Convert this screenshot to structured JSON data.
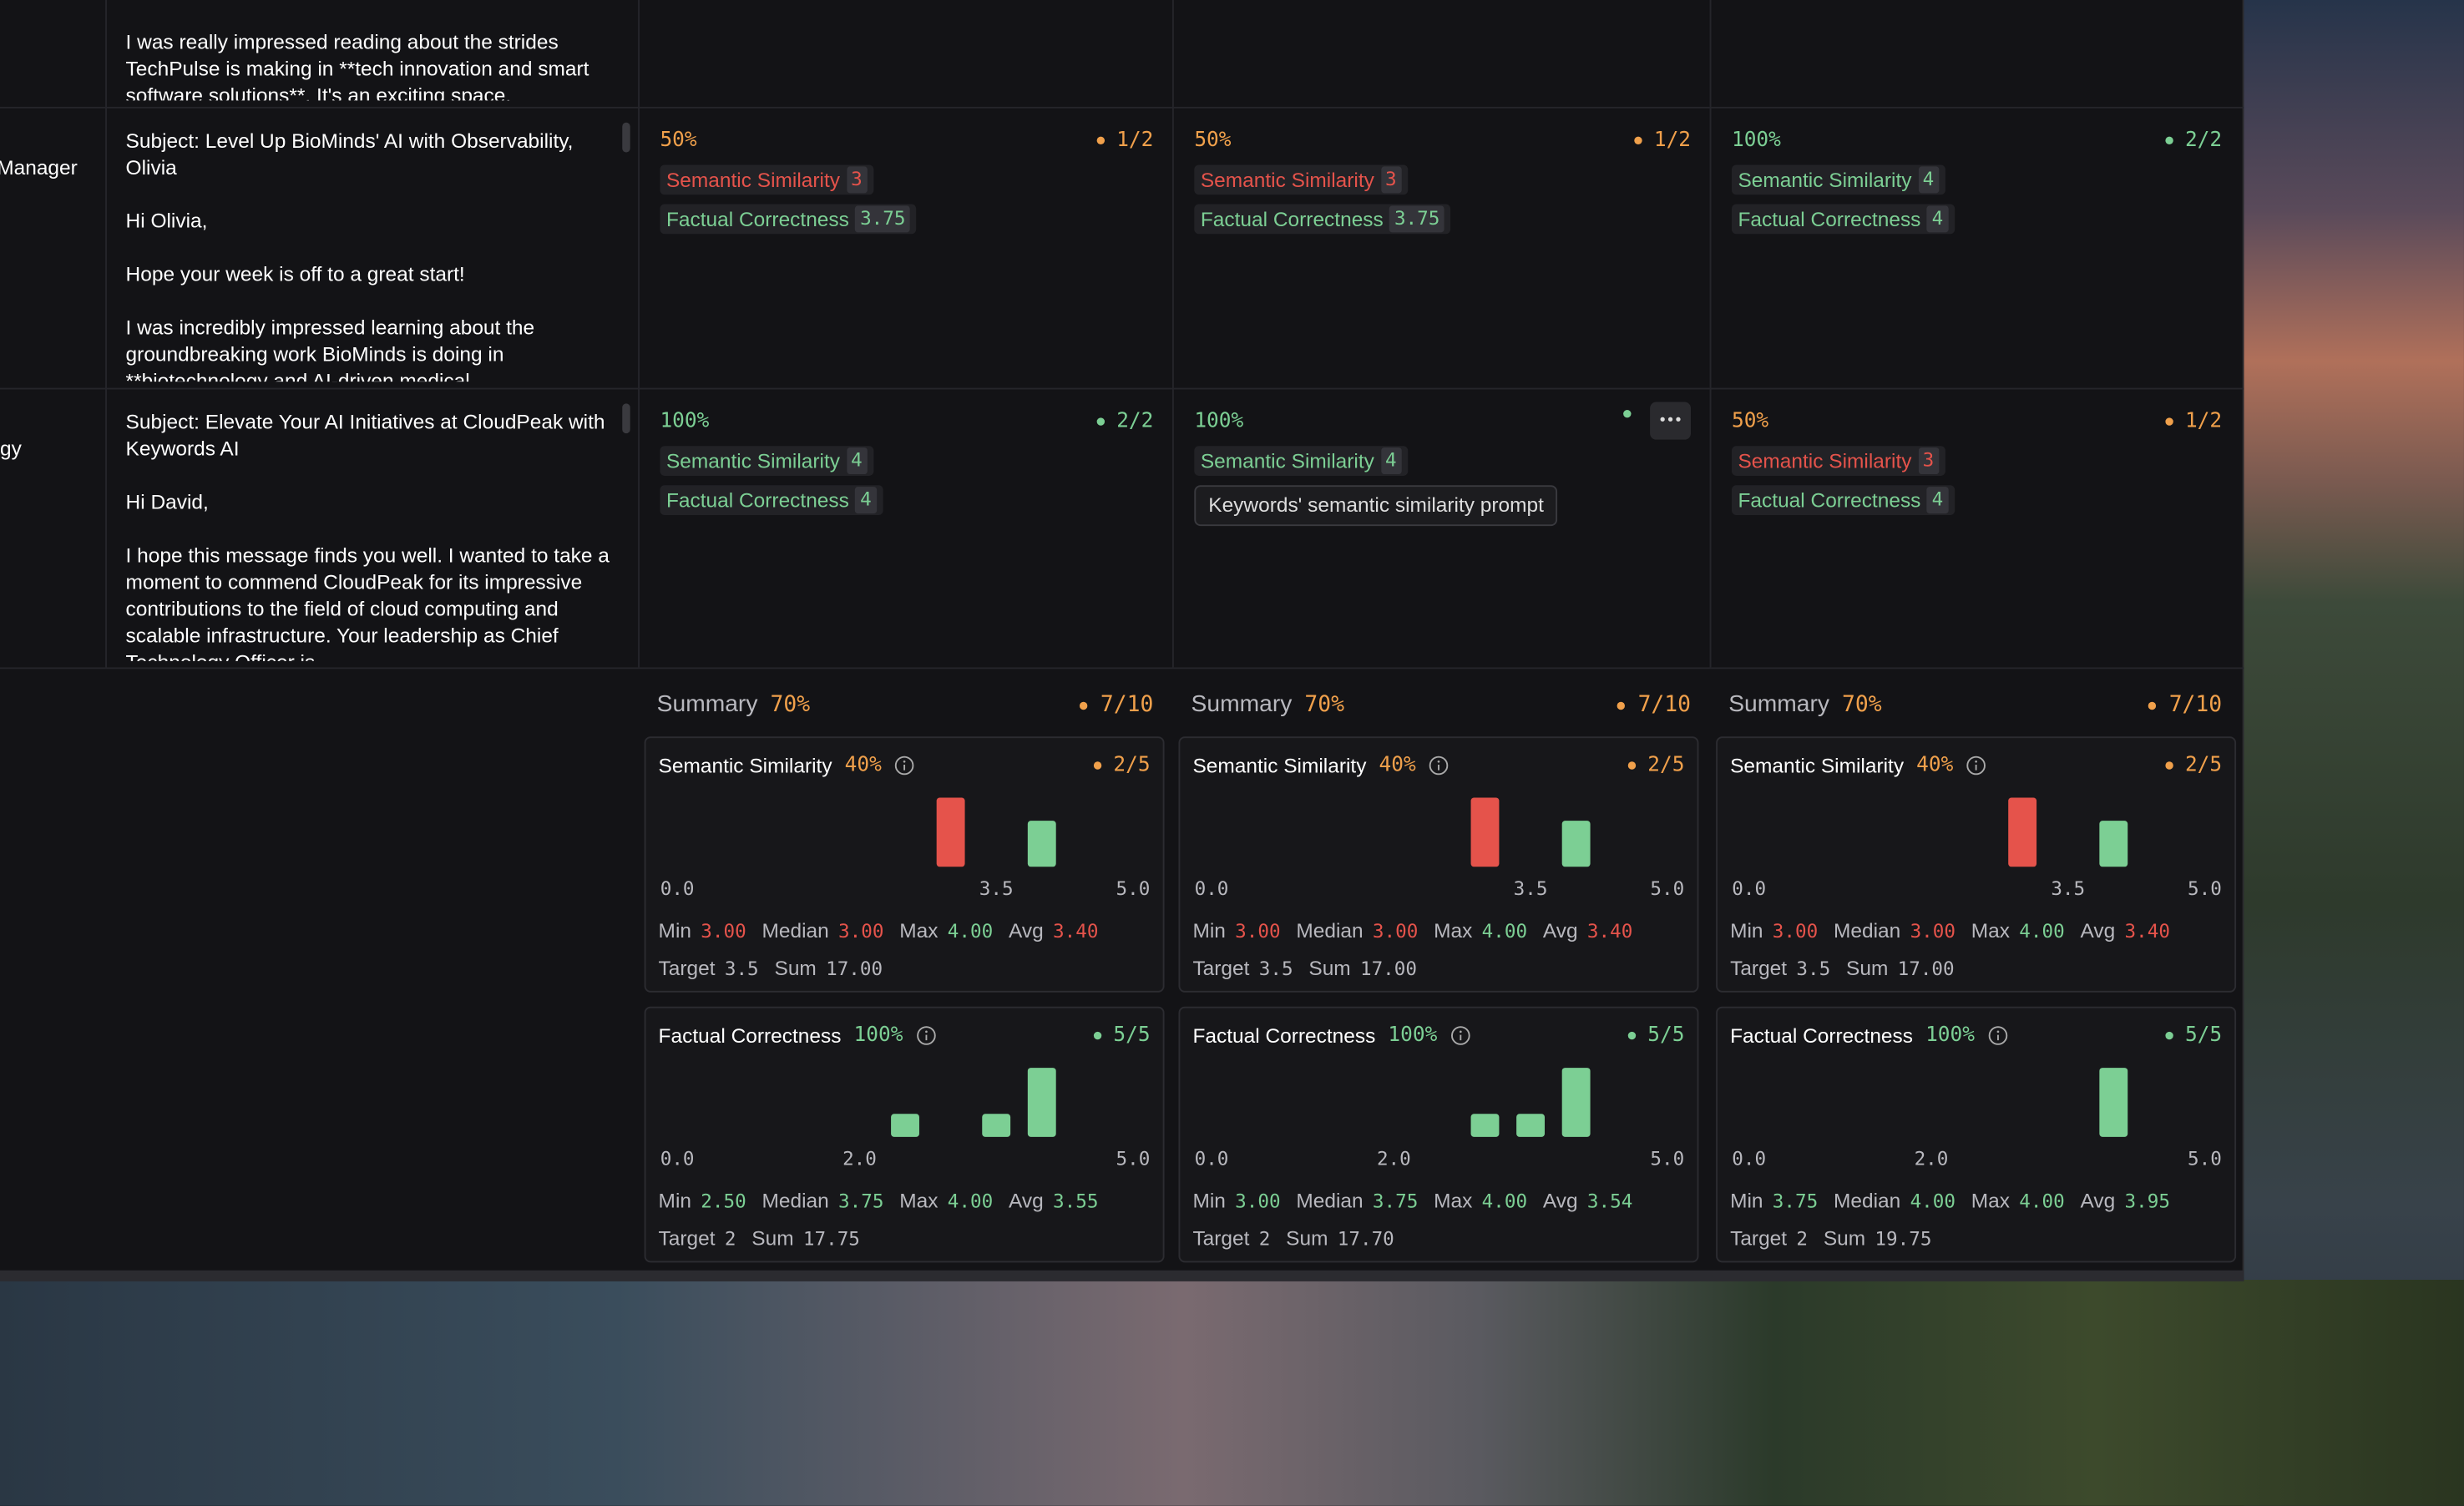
{
  "rows": [
    {
      "email": "I was really impressed reading about the strides TechPulse is making in **tech innovation and smart software solutions**. It's an exciting space."
    },
    {
      "label": "Manager",
      "email": "Subject: Level Up BioMinds' AI with Observability, Olivia\n\nHi Olivia,\n\nHope your week is off to a great start!\n\nI was incredibly impressed learning about the groundbreaking work BioMinds is doing in **biotechnology and AI-driven medical",
      "cells": [
        {
          "pct": "50%",
          "pct_color": "#f0a04b",
          "score": "1/2",
          "score_color": "#f0a04b",
          "metrics": [
            {
              "name": "Semantic Similarity",
              "value": 3,
              "color": "#e5534b"
            },
            {
              "name": "Factual Correctness",
              "value": 3.75,
              "color": "#7ccf94"
            }
          ]
        },
        {
          "pct": "50%",
          "pct_color": "#f0a04b",
          "score": "1/2",
          "score_color": "#f0a04b",
          "metrics": [
            {
              "name": "Semantic Similarity",
              "value": 3,
              "color": "#e5534b"
            },
            {
              "name": "Factual Correctness",
              "value": 3.75,
              "color": "#7ccf94"
            }
          ]
        },
        {
          "pct": "100%",
          "pct_color": "#7ccf94",
          "score": "2/2",
          "score_color": "#7ccf94",
          "metrics": [
            {
              "name": "Semantic Similarity",
              "value": 4,
              "color": "#7ccf94"
            },
            {
              "name": "Factual Correctness",
              "value": 4,
              "color": "#7ccf94"
            }
          ]
        }
      ]
    },
    {
      "label": "gy",
      "email": "Subject: Elevate Your AI Initiatives at CloudPeak with Keywords AI\n\nHi David,\n\nI hope this message finds you well. I wanted to take a moment to commend CloudPeak for its impressive contributions to the field of cloud computing and scalable infrastructure. Your leadership as Chief Technology Officer is",
      "cells": [
        {
          "pct": "100%",
          "pct_color": "#7ccf94",
          "score": "2/2",
          "score_color": "#7ccf94",
          "metrics": [
            {
              "name": "Semantic Similarity",
              "value": 4,
              "color": "#7ccf94"
            },
            {
              "name": "Factual Correctness",
              "value": 4,
              "color": "#7ccf94"
            }
          ]
        },
        {
          "pct": "100%",
          "pct_color": "#7ccf94",
          "score_color": "#7ccf94",
          "metrics": [
            {
              "name": "Semantic Similarity",
              "value": 4,
              "color": "#7ccf94"
            }
          ],
          "tooltip": "Keywords' semantic similarity prompt"
        },
        {
          "pct": "50%",
          "pct_color": "#f0a04b",
          "score": "1/2",
          "score_color": "#f0a04b",
          "metrics": [
            {
              "name": "Semantic Similarity",
              "value": 3,
              "color": "#e5534b"
            },
            {
              "name": "Factual Correctness",
              "value": 4,
              "color": "#7ccf94"
            }
          ]
        }
      ]
    }
  ],
  "summary": [
    {
      "label": "Summary",
      "pct": "70%",
      "score": "7/10",
      "color": "#f0a04b",
      "charts": [
        {
          "title": "Semantic Similarity",
          "pct": "40%",
          "color": "#f0a04b",
          "score": "2/5",
          "xlim": [
            0,
            5
          ],
          "xticks": [
            {
              "value": 0,
              "label": "0.0"
            },
            {
              "value": 3.5,
              "label": "3.5"
            },
            {
              "value": 5,
              "label": "5.0"
            }
          ],
          "bars": [
            {
              "x": 3,
              "count": 3,
              "color": "#e5534b"
            },
            {
              "x": 4,
              "count": 2,
              "color": "#7ccf94"
            }
          ],
          "stats": [
            {
              "label": "Min",
              "value": "3.00",
              "color": "#e5534b"
            },
            {
              "label": "Median",
              "value": "3.00",
              "color": "#e5534b"
            },
            {
              "label": "Max",
              "value": "4.00",
              "color": "#7ccf94"
            },
            {
              "label": "Avg",
              "value": "3.40",
              "color": "#e5534b"
            }
          ],
          "totals": [
            {
              "label": "Target",
              "value": "3.5"
            },
            {
              "label": "Sum",
              "value": "17.00"
            }
          ]
        },
        {
          "title": "Factual Correctness",
          "pct": "100%",
          "color": "#7ccf94",
          "score": "5/5",
          "xlim": [
            0,
            5
          ],
          "xticks": [
            {
              "value": 0,
              "label": "0.0"
            },
            {
              "value": 2,
              "label": "2.0"
            },
            {
              "value": 5,
              "label": "5.0"
            }
          ],
          "bars": [
            {
              "x": 2.5,
              "count": 1,
              "color": "#7ccf94"
            },
            {
              "x": 3.5,
              "count": 1,
              "color": "#7ccf94"
            },
            {
              "x": 4,
              "count": 3,
              "color": "#7ccf94"
            }
          ],
          "stats": [
            {
              "label": "Min",
              "value": "2.50",
              "color": "#7ccf94"
            },
            {
              "label": "Median",
              "value": "3.75",
              "color": "#7ccf94"
            },
            {
              "label": "Max",
              "value": "4.00",
              "color": "#7ccf94"
            },
            {
              "label": "Avg",
              "value": "3.55",
              "color": "#7ccf94"
            }
          ],
          "totals": [
            {
              "label": "Target",
              "value": "2"
            },
            {
              "label": "Sum",
              "value": "17.75"
            }
          ]
        }
      ]
    },
    {
      "label": "Summary",
      "pct": "70%",
      "score": "7/10",
      "color": "#f0a04b",
      "charts": [
        {
          "title": "Semantic Similarity",
          "pct": "40%",
          "color": "#f0a04b",
          "score": "2/5",
          "xlim": [
            0,
            5
          ],
          "xticks": [
            {
              "value": 0,
              "label": "0.0"
            },
            {
              "value": 3.5,
              "label": "3.5"
            },
            {
              "value": 5,
              "label": "5.0"
            }
          ],
          "bars": [
            {
              "x": 3,
              "count": 3,
              "color": "#e5534b"
            },
            {
              "x": 4,
              "count": 2,
              "color": "#7ccf94"
            }
          ],
          "stats": [
            {
              "label": "Min",
              "value": "3.00",
              "color": "#e5534b"
            },
            {
              "label": "Median",
              "value": "3.00",
              "color": "#e5534b"
            },
            {
              "label": "Max",
              "value": "4.00",
              "color": "#7ccf94"
            },
            {
              "label": "Avg",
              "value": "3.40",
              "color": "#e5534b"
            }
          ],
          "totals": [
            {
              "label": "Target",
              "value": "3.5"
            },
            {
              "label": "Sum",
              "value": "17.00"
            }
          ]
        },
        {
          "title": "Factual Correctness",
          "pct": "100%",
          "color": "#7ccf94",
          "score": "5/5",
          "xlim": [
            0,
            5
          ],
          "xticks": [
            {
              "value": 0,
              "label": "0.0"
            },
            {
              "value": 2,
              "label": "2.0"
            },
            {
              "value": 5,
              "label": "5.0"
            }
          ],
          "bars": [
            {
              "x": 3,
              "count": 1,
              "color": "#7ccf94"
            },
            {
              "x": 3.5,
              "count": 1,
              "color": "#7ccf94"
            },
            {
              "x": 4,
              "count": 3,
              "color": "#7ccf94"
            }
          ],
          "stats": [
            {
              "label": "Min",
              "value": "3.00",
              "color": "#7ccf94"
            },
            {
              "label": "Median",
              "value": "3.75",
              "color": "#7ccf94"
            },
            {
              "label": "Max",
              "value": "4.00",
              "color": "#7ccf94"
            },
            {
              "label": "Avg",
              "value": "3.54",
              "color": "#7ccf94"
            }
          ],
          "totals": [
            {
              "label": "Target",
              "value": "2"
            },
            {
              "label": "Sum",
              "value": "17.70"
            }
          ]
        }
      ]
    },
    {
      "label": "Summary",
      "pct": "70%",
      "score": "7/10",
      "color": "#f0a04b",
      "charts": [
        {
          "title": "Semantic Similarity",
          "pct": "40%",
          "color": "#f0a04b",
          "score": "2/5",
          "xlim": [
            0,
            5
          ],
          "xticks": [
            {
              "value": 0,
              "label": "0.0"
            },
            {
              "value": 3.5,
              "label": "3.5"
            },
            {
              "value": 5,
              "label": "5.0"
            }
          ],
          "bars": [
            {
              "x": 3,
              "count": 3,
              "color": "#e5534b"
            },
            {
              "x": 4,
              "count": 2,
              "color": "#7ccf94"
            }
          ],
          "stats": [
            {
              "label": "Min",
              "value": "3.00",
              "color": "#e5534b"
            },
            {
              "label": "Median",
              "value": "3.00",
              "color": "#e5534b"
            },
            {
              "label": "Max",
              "value": "4.00",
              "color": "#7ccf94"
            },
            {
              "label": "Avg",
              "value": "3.40",
              "color": "#e5534b"
            }
          ],
          "totals": [
            {
              "label": "Target",
              "value": "3.5"
            },
            {
              "label": "Sum",
              "value": "17.00"
            }
          ]
        },
        {
          "title": "Factual Correctness",
          "pct": "100%",
          "color": "#7ccf94",
          "score": "5/5",
          "xlim": [
            0,
            5
          ],
          "xticks": [
            {
              "value": 0,
              "label": "0.0"
            },
            {
              "value": 2,
              "label": "2.0"
            },
            {
              "value": 5,
              "label": "5.0"
            }
          ],
          "bars": [
            {
              "x": 4,
              "count": 5,
              "color": "#7ccf94"
            }
          ],
          "stats": [
            {
              "label": "Min",
              "value": "3.75",
              "color": "#7ccf94"
            },
            {
              "label": "Median",
              "value": "4.00",
              "color": "#7ccf94"
            },
            {
              "label": "Max",
              "value": "4.00",
              "color": "#7ccf94"
            },
            {
              "label": "Avg",
              "value": "3.95",
              "color": "#7ccf94"
            }
          ],
          "totals": [
            {
              "label": "Target",
              "value": "2"
            },
            {
              "label": "Sum",
              "value": "19.75"
            }
          ]
        }
      ]
    }
  ]
}
